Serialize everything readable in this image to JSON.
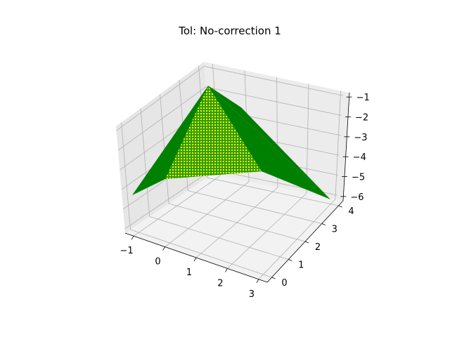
{
  "chart_data": {
    "type": "surface3d",
    "title": "Tol: No-correction 1",
    "x_ticks": [
      "−1",
      "0",
      "1",
      "2",
      "3"
    ],
    "y_ticks": [
      "0",
      "1",
      "2",
      "3",
      "4"
    ],
    "z_ticks": [
      "−1",
      "−2",
      "−3",
      "−4",
      "−5",
      "−6"
    ],
    "xlim": [
      -1,
      3
    ],
    "ylim": [
      0,
      4
    ],
    "zlim": [
      -6,
      -1
    ],
    "grid": true,
    "surface": {
      "x_range": [
        -1,
        3
      ],
      "y_range": [
        0,
        4
      ],
      "peak": {
        "x": 1,
        "y": 2,
        "z": -1
      },
      "corners": [
        {
          "x": -1,
          "y": 0,
          "z": -5
        },
        {
          "x": 3,
          "y": 0,
          "z": -5
        },
        {
          "x": -1,
          "y": 4,
          "z": -5
        },
        {
          "x": 3,
          "y": 4,
          "z": -5
        }
      ],
      "face_colors": {
        "dark": "#008000",
        "light": "#ffff00",
        "blend": "#00b050"
      }
    },
    "colors": {
      "pane": "#f2f2f2",
      "pane_side": "#ebebeb",
      "grid": "#b0b0b0",
      "axis": "#000000"
    }
  }
}
